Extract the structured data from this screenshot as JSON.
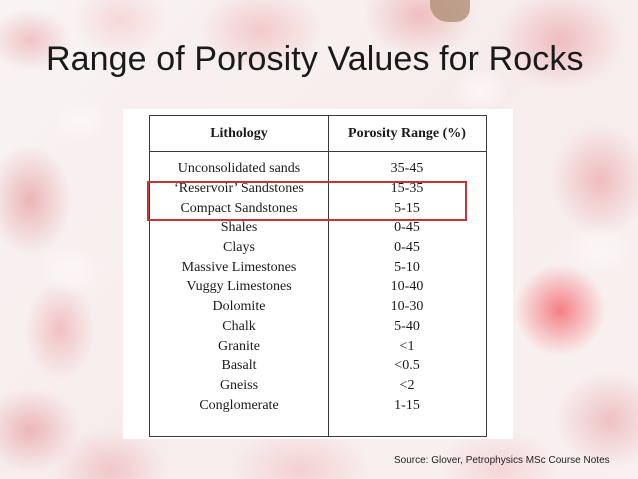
{
  "slide": {
    "title": "Range of Porosity Values for Rocks",
    "source": "Source: Glover, Petrophysics MSc Course Notes"
  },
  "table": {
    "headers": [
      "Lithology",
      "Porosity Range (%)"
    ],
    "rows": [
      [
        "Unconsolidated sands",
        "35-45"
      ],
      [
        "‘Reservoir’ Sandstones",
        "15-35"
      ],
      [
        "Compact Sandstones",
        "5-15"
      ],
      [
        "Shales",
        "0-45"
      ],
      [
        "Clays",
        "0-45"
      ],
      [
        "Massive Limestones",
        "5-10"
      ],
      [
        "Vuggy Limestones",
        "10-40"
      ],
      [
        "Dolomite",
        "10-30"
      ],
      [
        "Chalk",
        "5-40"
      ],
      [
        "Granite",
        "<1"
      ],
      [
        "Basalt",
        "<0.5"
      ],
      [
        "Gneiss",
        "<2"
      ],
      [
        "Conglomerate",
        "1-15"
      ]
    ],
    "highlighted_rows": [
      1,
      2
    ],
    "highlight_color": "#c83333"
  }
}
